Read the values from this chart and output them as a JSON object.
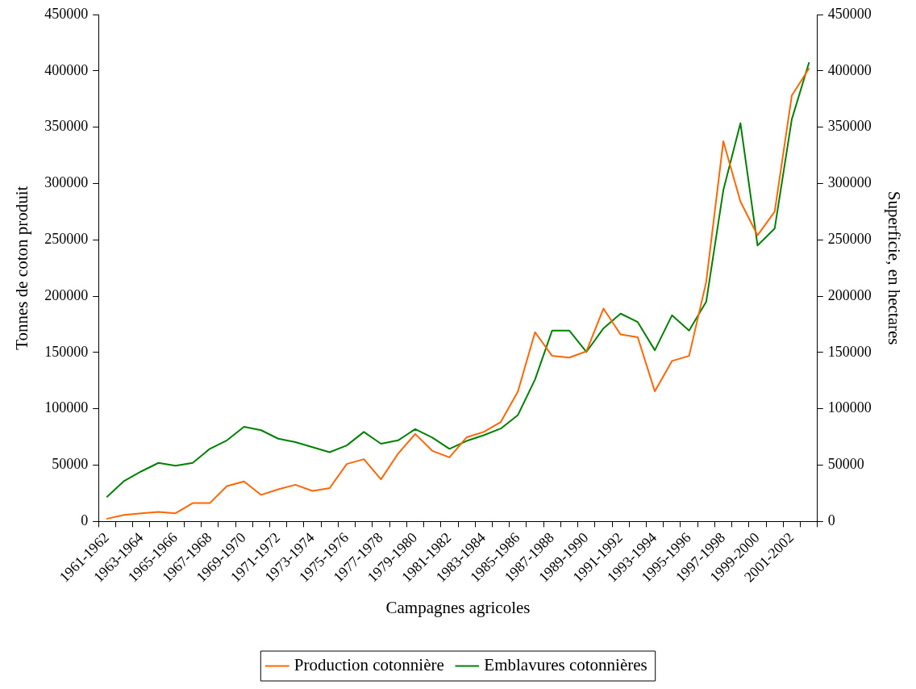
{
  "chart_data": {
    "type": "line",
    "xlabel": "Campagnes agricoles",
    "ylabel": "Tonnes de coton produit",
    "y2label": "Superficie, en hectares",
    "categories": [
      "1961-1962",
      null,
      "1963-1964",
      null,
      "1965-1966",
      null,
      "1967-1968",
      null,
      "1969-1970",
      null,
      "1971-1972",
      null,
      "1973-1974",
      null,
      "1975-1976",
      null,
      "1977-1978",
      null,
      "1979-1980",
      null,
      "1981-1982",
      null,
      "1983-1984",
      null,
      "1985-1986",
      null,
      "1987-1988",
      null,
      "1989-1990",
      null,
      "1991-1992",
      null,
      "1993-1994",
      null,
      "1995-1996",
      null,
      "1997-1998",
      null,
      "1999-2000",
      null,
      "2001-2002",
      null
    ],
    "series": [
      {
        "name": "Production cotonnière",
        "color": "#ff6600",
        "values": [
          2500,
          5800,
          7300,
          8500,
          7300,
          16300,
          16300,
          31400,
          35600,
          23600,
          28600,
          32600,
          27100,
          29600,
          51000,
          55300,
          37400,
          60200,
          77700,
          62700,
          56900,
          74700,
          79500,
          88300,
          115400,
          168000,
          147000,
          145500,
          151000,
          189000,
          166000,
          163500,
          115500,
          142500,
          147000,
          212500,
          337500,
          284000,
          254000,
          275000,
          378000,
          402000
        ]
      },
      {
        "name": "Emblavures cotonnières",
        "color": "#008000",
        "axis": "y2",
        "values": [
          22000,
          36000,
          44500,
          52000,
          49500,
          52000,
          64500,
          72000,
          84000,
          81000,
          73500,
          70500,
          66000,
          61500,
          67500,
          79500,
          69000,
          72000,
          82000,
          74500,
          64500,
          71500,
          76500,
          82500,
          94500,
          126000,
          169500,
          169500,
          150500,
          171500,
          184500,
          177000,
          152000,
          183000,
          169500,
          195000,
          294000,
          353500,
          245000,
          260000,
          357000,
          407000
        ]
      }
    ],
    "ylim": [
      0,
      450000
    ],
    "yticks": [
      0,
      50000,
      100000,
      150000,
      200000,
      250000,
      300000,
      350000,
      400000,
      450000
    ],
    "y2lim": [
      0,
      450000
    ],
    "y2ticks": [
      0,
      50000,
      100000,
      150000,
      200000,
      250000,
      300000,
      350000,
      400000,
      450000
    ],
    "grid": false,
    "legend": "bottom",
    "marker": "none",
    "line_style": "solid"
  }
}
